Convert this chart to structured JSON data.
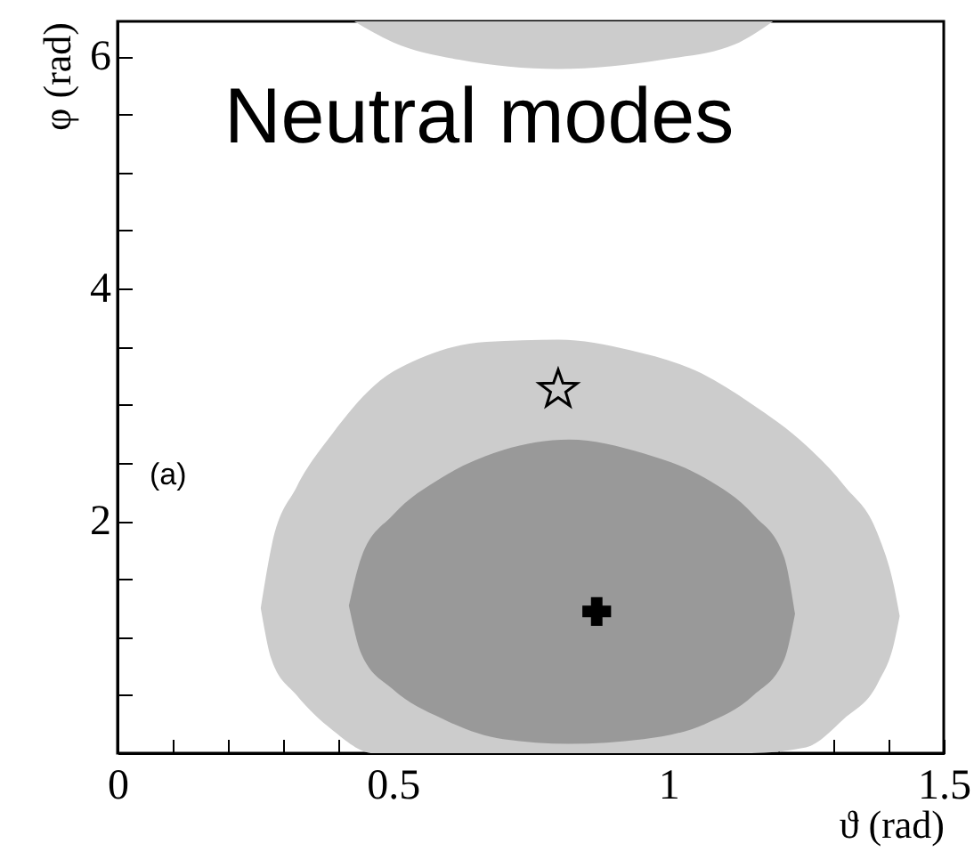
{
  "chart_data": {
    "type": "area",
    "xlabel": "ϑ (rad)",
    "ylabel": "φ (rad)",
    "annotations": [
      "Neutral modes",
      "(a)"
    ],
    "xlim": [
      0,
      1.5
    ],
    "ylim": [
      0,
      6.3
    ],
    "xticks": [
      0,
      {
        "value": 0.1,
        "label": null
      },
      {
        "value": 0.2,
        "label": null
      },
      {
        "value": 0.3,
        "label": null
      },
      {
        "value": 0.4,
        "label": null
      },
      0.5,
      {
        "value": 0.6,
        "label": null
      },
      {
        "value": 0.7,
        "label": null
      },
      {
        "value": 0.8,
        "label": null
      },
      {
        "value": 0.9,
        "label": null
      },
      1,
      {
        "value": 1.1,
        "label": null
      },
      {
        "value": 1.2,
        "label": null
      },
      {
        "value": 1.3,
        "label": null
      },
      {
        "value": 1.4,
        "label": null
      },
      1.5
    ],
    "yticks": [
      {
        "value": 0.5,
        "label": null
      },
      {
        "value": 1,
        "label": null
      },
      {
        "value": 1.5,
        "label": null
      },
      2,
      {
        "value": 2.5,
        "label": null
      },
      {
        "value": 3,
        "label": null
      },
      {
        "value": 3.5,
        "label": null
      },
      4,
      {
        "value": 4.5,
        "label": null
      },
      {
        "value": 5,
        "label": null
      },
      {
        "value": 5.5,
        "label": null
      },
      6
    ],
    "grid": false,
    "series": [
      {
        "type": "area",
        "color": "#cccccc",
        "x": [
          0.26,
          0.28,
          0.325,
          0.39,
          0.465,
          0.56,
          0.67,
          0.8,
          0.93,
          1.06,
          1.15,
          1.25,
          1.32,
          1.38,
          1.41,
          1.42
        ],
        "values": [
          null,
          null,
          null,
          null,
          null,
          null,
          null,
          null,
          null,
          null,
          null,
          null,
          null,
          null,
          null,
          null
        ],
        "upper": [
          1.25,
          1.79,
          2.29,
          2.75,
          3.16,
          3.42,
          3.54,
          3.56,
          3.47,
          3.27,
          3.01,
          2.65,
          2.3,
          1.89,
          1.43,
          1.18
        ],
        "lower": [
          1.25,
          0.8,
          0.5,
          0.2,
          0,
          0,
          0,
          0,
          0,
          0,
          0,
          0.05,
          0.3,
          0.6,
          0.95,
          1.18
        ]
      },
      {
        "type": "area",
        "color": "#999999",
        "x": [
          0.42,
          0.443,
          0.5,
          0.588,
          0.7,
          0.82,
          0.955,
          1.066,
          1.155,
          1.21,
          1.23
        ],
        "values": [
          null,
          null,
          null,
          null,
          null,
          null,
          null,
          null,
          null,
          null,
          null
        ],
        "upper": [
          1.27,
          1.69,
          2.05,
          2.37,
          2.61,
          2.7,
          2.58,
          2.37,
          2.05,
          1.69,
          1.2
        ],
        "lower": [
          1.27,
          0.85,
          0.55,
          0.3,
          0.12,
          0.08,
          0.12,
          0.25,
          0.5,
          0.8,
          1.2
        ]
      },
      {
        "type": "area",
        "color": "#cccccc",
        "x": [
          0.43,
          0.5,
          0.62,
          0.8,
          0.99,
          1.12,
          1.19
        ],
        "values": [
          null,
          null,
          null,
          null,
          null,
          null,
          null
        ],
        "upper": [
          6.3,
          6.3,
          6.3,
          6.3,
          6.3,
          6.3,
          6.3
        ],
        "lower": [
          6.3,
          6.12,
          5.97,
          5.89,
          5.97,
          6.1,
          6.3
        ]
      },
      {
        "type": "scatter",
        "marker": "star",
        "color": "#000000",
        "x": [
          0.8
        ],
        "values": [
          3.13
        ]
      },
      {
        "type": "scatter",
        "marker": "cross",
        "color": "#000000",
        "x": [
          0.87
        ],
        "values": [
          1.22
        ]
      }
    ]
  }
}
